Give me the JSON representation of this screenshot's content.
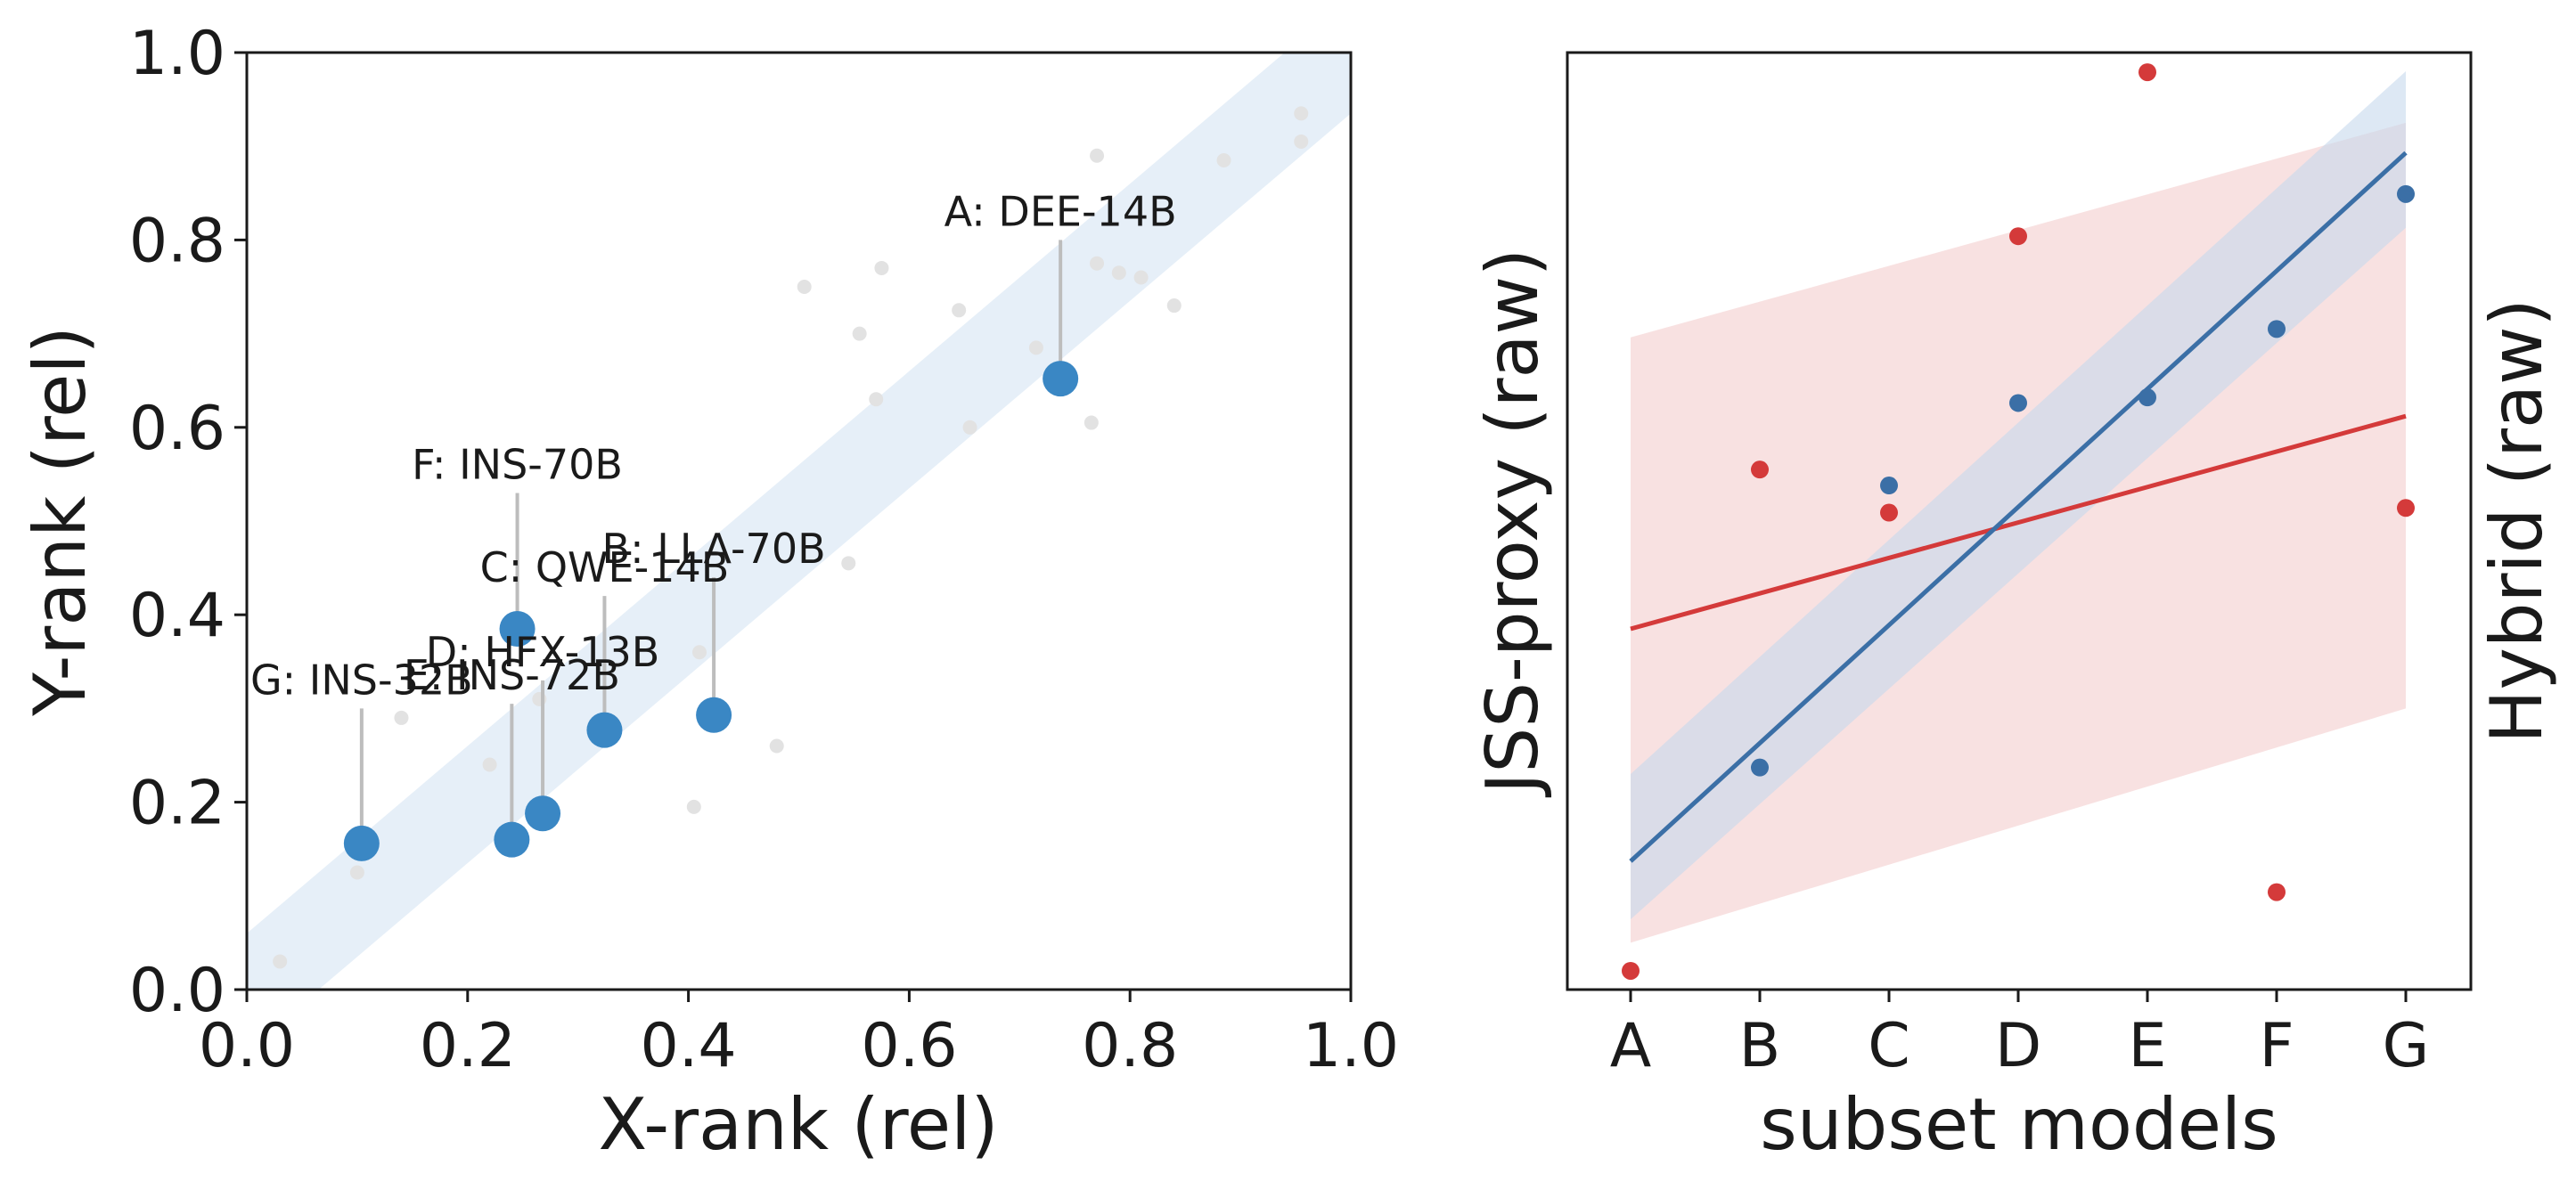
{
  "chart_data": [
    {
      "type": "scatter",
      "xlabel": "X-rank (rel)",
      "ylabel": "Y-rank (rel)",
      "xlim": [
        0.0,
        1.0
      ],
      "ylim": [
        0.0,
        1.0
      ],
      "xticks": [
        "0.0",
        "0.2",
        "0.4",
        "0.6",
        "0.8",
        "1.0"
      ],
      "yticks": [
        "0.0",
        "0.2",
        "0.4",
        "0.6",
        "0.8",
        "1.0"
      ],
      "band": {
        "slope": 1.0,
        "intercept_low": -0.065,
        "intercept_high": 0.06,
        "color": "#dbe8f5"
      },
      "background_points": [
        [
          0.03,
          0.03
        ],
        [
          0.1,
          0.125
        ],
        [
          0.14,
          0.29
        ],
        [
          0.22,
          0.24
        ],
        [
          0.265,
          0.31
        ],
        [
          0.405,
          0.195
        ],
        [
          0.41,
          0.36
        ],
        [
          0.48,
          0.26
        ],
        [
          0.545,
          0.455
        ],
        [
          0.505,
          0.75
        ],
        [
          0.555,
          0.7
        ],
        [
          0.57,
          0.63
        ],
        [
          0.575,
          0.77
        ],
        [
          0.645,
          0.725
        ],
        [
          0.655,
          0.6
        ],
        [
          0.715,
          0.685
        ],
        [
          0.765,
          0.605
        ],
        [
          0.77,
          0.89
        ],
        [
          0.77,
          0.775
        ],
        [
          0.79,
          0.765
        ],
        [
          0.81,
          0.76
        ],
        [
          0.84,
          0.73
        ],
        [
          0.885,
          0.885
        ],
        [
          0.955,
          0.935
        ],
        [
          0.955,
          0.905
        ]
      ],
      "highlight_color": "#3a87c4",
      "points": [
        {
          "label": "A: DEE-14B",
          "x": 0.737,
          "y": 0.652,
          "label_y": 0.8
        },
        {
          "label": "B: LLA-70B",
          "x": 0.423,
          "y": 0.293,
          "label_y": 0.44
        },
        {
          "label": "C: QWE-14B",
          "x": 0.324,
          "y": 0.277,
          "label_y": 0.42
        },
        {
          "label": "D: HFX-13B",
          "x": 0.268,
          "y": 0.188,
          "label_y": 0.33
        },
        {
          "label": "E: INS-72B",
          "x": 0.24,
          "y": 0.16,
          "label_y": 0.305
        },
        {
          "label": "F: INS-70B",
          "x": 0.245,
          "y": 0.385,
          "label_y": 0.53
        },
        {
          "label": "G: INS-32B",
          "x": 0.104,
          "y": 0.156,
          "label_y": 0.3
        }
      ]
    },
    {
      "type": "scatter",
      "xlabel": "subset models",
      "ylabel_left": "JSS-proxy (raw)",
      "ylabel_right": "Hybrid (raw)",
      "categories": [
        "A",
        "B",
        "C",
        "D",
        "E",
        "F",
        "G"
      ],
      "ylim": [
        0.0,
        1.0
      ],
      "series": [
        {
          "name": "JSS-proxy",
          "color": "#3b6fa6",
          "band_color": "#c6d8ec",
          "values": [
            null,
            0.237,
            0.538,
            0.626,
            0.632,
            0.705,
            0.849
          ],
          "fit": [
            0.137,
            0.893
          ],
          "band_low": [
            0.075,
            0.813
          ],
          "band_high": [
            0.23,
            0.98
          ]
        },
        {
          "name": "Hybrid",
          "color": "#d43a3a",
          "band_color": "#f4d1d1",
          "values": [
            0.02,
            0.555,
            0.509,
            0.804,
            0.979,
            0.104,
            0.514
          ],
          "fit": [
            0.385,
            0.612
          ],
          "band_low": [
            0.05,
            0.3
          ],
          "band_high": [
            0.696,
            0.925
          ]
        }
      ]
    }
  ]
}
